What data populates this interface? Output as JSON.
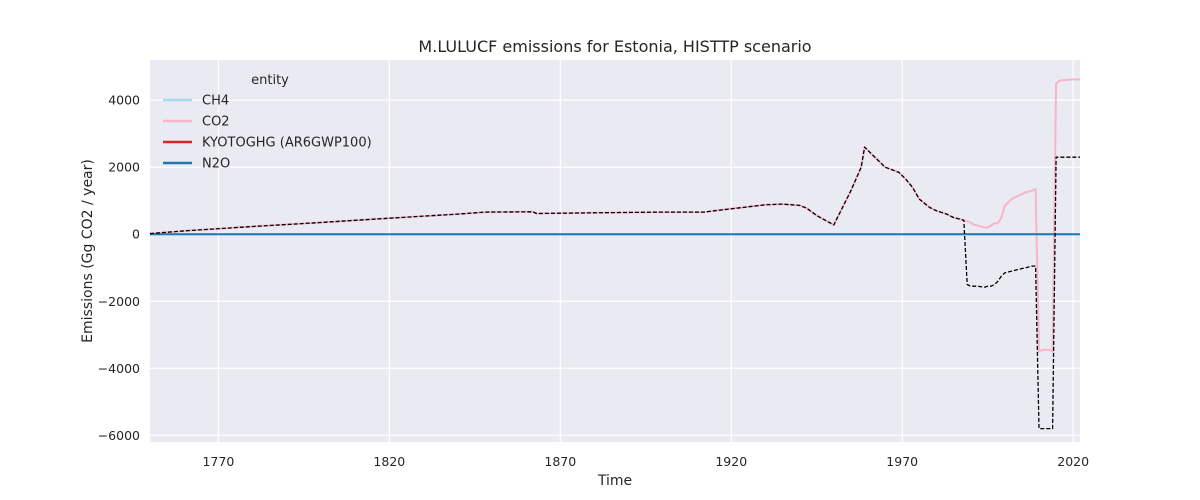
{
  "chart_data": {
    "type": "line",
    "title": "M.LULUCF emissions for Estonia, HISTTP scenario",
    "xlabel": "Time",
    "ylabel": "Emissions (Gg CO2 / year)",
    "xlim": [
      1750,
      2022
    ],
    "ylim": [
      -6200,
      5200
    ],
    "xticks": [
      1770,
      1820,
      1870,
      1920,
      1970,
      2020
    ],
    "yticks": [
      -6000,
      -4000,
      -2000,
      0,
      2000,
      4000
    ],
    "tick_labels": {
      "x": [
        "1770",
        "1820",
        "1870",
        "1920",
        "1970",
        "2020"
      ],
      "y": [
        "−6000",
        "−4000",
        "−2000",
        "0",
        "2000",
        "4000"
      ]
    },
    "grid": true,
    "background": "#eaeaf2",
    "legend": {
      "title": "entity",
      "placement": "top-left",
      "entries": [
        "CH4",
        "CO2",
        "KYOTOGHG (AR6GWP100)",
        "N2O"
      ]
    },
    "series": [
      {
        "name": "CH4",
        "color": "#a6dcea",
        "width": 2,
        "x": [
          1750,
          2022
        ],
        "y": [
          0,
          0
        ]
      },
      {
        "name": "CO2",
        "color": "#f7b6c8",
        "width": 2,
        "x": [
          1750,
          1760,
          1780,
          1800,
          1820,
          1840,
          1848,
          1862,
          1863,
          1880,
          1900,
          1912,
          1915,
          1920,
          1925,
          1930,
          1935,
          1940,
          1942,
          1945,
          1948,
          1950,
          1955,
          1958,
          1959,
          1965,
          1969,
          1971,
          1973,
          1975,
          1978,
          1980,
          1983,
          1985,
          1987,
          1988,
          1989,
          1990,
          1991,
          1992,
          1993,
          1994,
          1995,
          1996,
          1997,
          1998,
          1999,
          2000,
          2002,
          2004,
          2006,
          2008,
          2009,
          2010,
          2011,
          2012,
          2013,
          2014,
          2015,
          2016,
          2017,
          2018,
          2019,
          2020,
          2021,
          2022
        ],
        "y": [
          20,
          100,
          230,
          350,
          480,
          600,
          660,
          670,
          620,
          640,
          660,
          660,
          700,
          760,
          820,
          880,
          900,
          860,
          780,
          560,
          390,
          280,
          1300,
          2000,
          2600,
          2000,
          1850,
          1650,
          1400,
          1050,
          800,
          700,
          600,
          500,
          450,
          420,
          390,
          350,
          280,
          260,
          230,
          200,
          200,
          260,
          330,
          330,
          500,
          850,
          1050,
          1150,
          1250,
          1300,
          1350,
          -3500,
          -3450,
          -3450,
          -3450,
          -3500,
          4500,
          4580,
          4600,
          4600,
          4620,
          4620,
          4620,
          4620
        ]
      },
      {
        "name": "KYOTOGHG (AR6GWP100)",
        "color": "#000000",
        "width": 1.3,
        "dashed": true,
        "x": [
          1750,
          1760,
          1780,
          1800,
          1820,
          1840,
          1848,
          1862,
          1863,
          1880,
          1900,
          1912,
          1915,
          1920,
          1925,
          1930,
          1935,
          1940,
          1942,
          1945,
          1948,
          1950,
          1955,
          1958,
          1959,
          1965,
          1969,
          1971,
          1973,
          1975,
          1978,
          1980,
          1983,
          1985,
          1987,
          1988,
          1989,
          1990,
          1992,
          1994,
          1995,
          1996,
          1997,
          1998,
          1999,
          2000,
          2002,
          2004,
          2006,
          2008,
          2009,
          2010,
          2011,
          2012,
          2013,
          2014,
          2015,
          2016,
          2017,
          2018,
          2020,
          2022
        ],
        "y": [
          20,
          100,
          230,
          350,
          480,
          600,
          660,
          670,
          620,
          640,
          660,
          660,
          700,
          760,
          820,
          880,
          900,
          860,
          780,
          560,
          390,
          280,
          1300,
          2000,
          2600,
          2000,
          1850,
          1650,
          1400,
          1050,
          800,
          700,
          600,
          500,
          450,
          420,
          -1500,
          -1550,
          -1550,
          -1580,
          -1550,
          -1550,
          -1500,
          -1400,
          -1250,
          -1150,
          -1100,
          -1050,
          -1000,
          -950,
          -950,
          -5800,
          -5800,
          -5800,
          -5800,
          -5800,
          2300,
          2300,
          2300,
          2300,
          2300,
          2300
        ]
      },
      {
        "name": "N2O",
        "color": "#1f77b4",
        "width": 2,
        "x": [
          1750,
          2022
        ],
        "y": [
          0,
          0
        ]
      }
    ]
  }
}
